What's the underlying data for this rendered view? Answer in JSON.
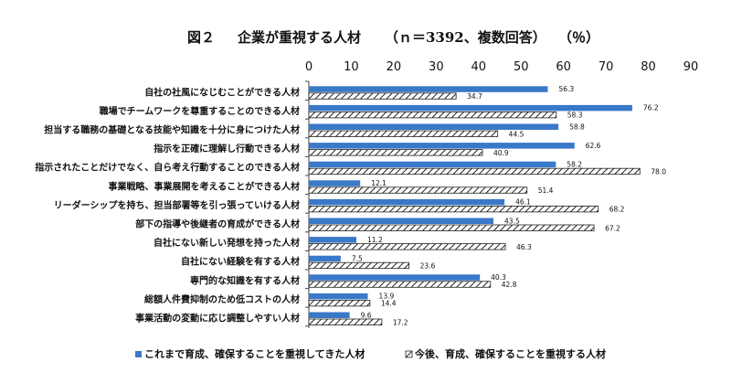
{
  "chart_data": {
    "type": "bar",
    "orientation": "horizontal",
    "title": "図２　企業が重視する人材　（ｎ＝3392、複数回答）　（％）",
    "title_parts": [
      "図２",
      "企業が重視する人材",
      "（ｎ＝3392、複数回答）",
      "（％）"
    ],
    "categories": [
      "自社の社風になじむことができる人材",
      "職場でチームワークを尊重することのできる人材",
      "担当する職務の基礎となる技能や知識を十分に身につけた人材",
      "指示を正確に理解し行動できる人材",
      "指示されたことだけでなく、自ら考え行動することのできる人材",
      "事業戦略、事業展開を考えることができる人材",
      "リーダーシップを持ち、担当部署等を引っ張っていける人材",
      "部下の指導や後継者の育成ができる人材",
      "自社にない新しい発想を持った人材",
      "自社にない経験を有する人材",
      "専門的な知識を有する人材",
      "総額人件費抑制のため低コストの人材",
      "事業活動の変動に応じ調整しやすい人材"
    ],
    "series": [
      {
        "name": "これまで育成、確保することを重視してきた人材",
        "color": "#3a78c8",
        "pattern": "solid",
        "values": [
          56.3,
          76.2,
          58.8,
          62.6,
          58.2,
          12.1,
          46.1,
          43.5,
          11.2,
          7.5,
          40.3,
          13.9,
          9.6
        ],
        "labels": [
          "56.3",
          "76.2",
          "58.8",
          "62.6",
          "58.2",
          "12.1",
          "46.1",
          "43.5",
          "11.2",
          "7.5",
          "40.3",
          "13.9",
          "9.6"
        ]
      },
      {
        "name": "今後、育成、確保することを重視する人材",
        "color": "#222222",
        "pattern": "diagonal-hatch",
        "values": [
          34.7,
          58.3,
          44.5,
          40.9,
          78.0,
          51.4,
          68.2,
          67.2,
          46.3,
          23.6,
          42.8,
          14.4,
          17.2
        ],
        "labels": [
          "34.7",
          "58.3",
          "44.5",
          "40.9",
          "78.0",
          "51.4",
          "68.2",
          "67.2",
          "46.3",
          "23.6",
          "42.8",
          "14.4",
          "17.2"
        ]
      }
    ],
    "xlim": [
      0,
      90
    ],
    "xticks": [
      "0",
      "10",
      "20",
      "30",
      "40",
      "50",
      "60",
      "70",
      "80",
      "90"
    ],
    "xaxis_position": "top",
    "grid": false,
    "legend_position": "bottom"
  }
}
